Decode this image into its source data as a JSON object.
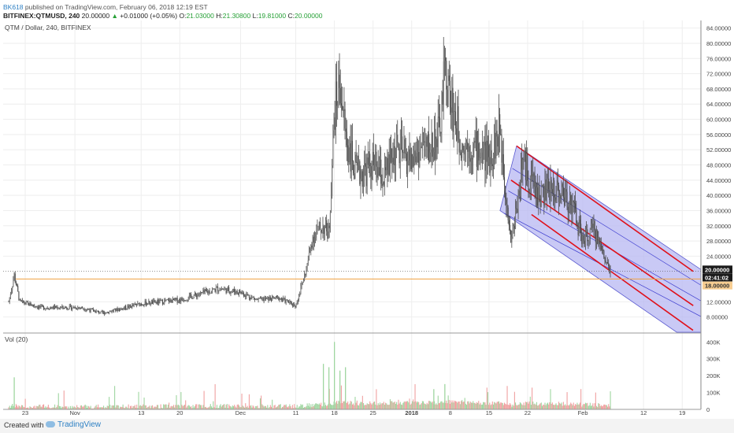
{
  "header": {
    "user": "BK618",
    "published": " published on TradingView.com, February 06, 2018 12:19 EST",
    "symbol": "BITFINEX:QTMUSD, 240",
    "last": "20.00000",
    "change_arrow": "▲",
    "change": "+0.01000 (+0.05%)",
    "o_label": "O:",
    "o_val": "21.03000",
    "h_label": "H:",
    "h_val": "21.30800",
    "l_label": "L:",
    "l_val": "19.81000",
    "c_label": "C:",
    "c_val": "20.00000"
  },
  "footer": {
    "created": "Created with",
    "brand": "TradingView"
  },
  "colors": {
    "candle": "#4a4a4a",
    "grid": "#eeeeee",
    "channel_fill": "#b7b7f2",
    "channel_line": "#e0101a",
    "channel_inner": "#3c3ccf",
    "hline": "#f0a040",
    "badge_dark": "#1b1b1b",
    "badge_orange": "#f7ce92"
  },
  "chart_data": {
    "type": "candlestick",
    "title": "QTM / Dollar, 240, BITFINEX",
    "x_ticks": [
      "23",
      "Nov",
      "13",
      "20",
      "Dec",
      "11",
      "18",
      "25",
      "2018",
      "8",
      "15",
      "22",
      "Feb",
      "12",
      "19"
    ],
    "y_ticks": [
      "84.00000",
      "80.00000",
      "76.00000",
      "72.00000",
      "68.00000",
      "64.00000",
      "60.00000",
      "56.00000",
      "52.00000",
      "48.00000",
      "44.00000",
      "40.00000",
      "36.00000",
      "32.00000",
      "28.00000",
      "24.00000",
      "12.00000",
      "8.00000"
    ],
    "ylim": [
      4,
      86
    ],
    "last_price_badge": "20.00000",
    "countdown_badge": "02:41:02",
    "hline_badge": "18.00000",
    "horizontal_line": 18,
    "price_path": [
      [
        "Oct 20",
        12
      ],
      [
        "Oct 21",
        19
      ],
      [
        "Oct 22",
        12
      ],
      [
        "Oct 26",
        10.5
      ],
      [
        "Nov 2",
        10.5
      ],
      [
        "Nov 6",
        9
      ],
      [
        "Nov 13",
        11.5
      ],
      [
        "Nov 20",
        12.5
      ],
      [
        "Nov 27",
        15.5
      ],
      [
        "Dec 1",
        14.5
      ],
      [
        "Dec 4",
        12.5
      ],
      [
        "Dec 8",
        13
      ],
      [
        "Dec 11",
        11
      ],
      [
        "Dec 12",
        16
      ],
      [
        "Dec 13",
        21
      ],
      [
        "Dec 14",
        29
      ],
      [
        "Dec 16",
        32
      ],
      [
        "Dec 17",
        30
      ],
      [
        "Dec 18",
        62
      ],
      [
        "Dec 19",
        70
      ],
      [
        "Dec 20",
        56
      ],
      [
        "Dec 22",
        45
      ],
      [
        "Dec 25",
        48
      ],
      [
        "Dec 27",
        44
      ],
      [
        "Dec 29",
        52
      ],
      [
        "Jan 1",
        49
      ],
      [
        "Jan 3",
        53
      ],
      [
        "Jan 4",
        52
      ],
      [
        "Jan 6",
        56
      ],
      [
        "Jan 7",
        73
      ],
      [
        "Jan 8",
        65
      ],
      [
        "Jan 10",
        54
      ],
      [
        "Jan 13",
        52
      ],
      [
        "Jan 15",
        50
      ],
      [
        "Jan 17",
        57
      ],
      [
        "Jan 18",
        42
      ],
      [
        "Jan 19",
        28
      ],
      [
        "Jan 20",
        37
      ],
      [
        "Jan 21",
        49
      ],
      [
        "Jan 24",
        40
      ],
      [
        "Jan 27",
        42
      ],
      [
        "Jan 30",
        38
      ],
      [
        "Feb 1",
        28
      ],
      [
        "Feb 3",
        31
      ],
      [
        "Feb 6",
        20
      ]
    ],
    "volume": {
      "label": "Vol (20)",
      "y_ticks": [
        "400K",
        "300K",
        "200K",
        "100K",
        "0"
      ],
      "ylim": [
        0,
        420000
      ]
    },
    "regression_channel": {
      "start": [
        "Jan 19",
        53
      ],
      "end": [
        "Feb 18",
        4
      ],
      "upper_line": [
        [
          "Jan 20",
          53
        ],
        [
          "Feb 21",
          20
        ]
      ],
      "middle_line": [
        [
          "Jan 19",
          44
        ],
        [
          "Feb 21",
          11
        ]
      ],
      "lower_line": [
        [
          "Jan 17",
          36
        ],
        [
          "Feb 21",
          4.5
        ]
      ]
    }
  }
}
